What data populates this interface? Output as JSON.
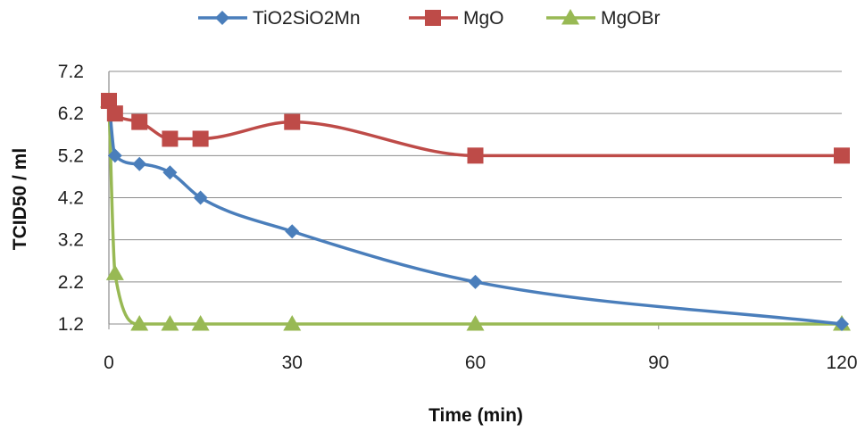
{
  "chart_data": {
    "type": "line",
    "title": "",
    "xlabel": "Time (min)",
    "ylabel": "TCID50 / ml",
    "xlim": [
      0,
      120
    ],
    "ylim": [
      1.2,
      7.2
    ],
    "xticks": [
      "0",
      "30",
      "60",
      "90",
      "120"
    ],
    "yticks": [
      "1.2",
      "2.2",
      "3.2",
      "4.2",
      "5.2",
      "6.2",
      "7.2"
    ],
    "grid": "horizontal",
    "legend_position": "top",
    "smooth": true,
    "series": [
      {
        "name": "TiO2SiO2Mn",
        "color": "#4a7ebb",
        "marker": "diamond",
        "x": [
          0,
          1,
          5,
          10,
          15,
          30,
          60,
          120
        ],
        "y": [
          6.5,
          5.2,
          5.0,
          4.8,
          4.2,
          3.4,
          2.2,
          1.2
        ]
      },
      {
        "name": "MgO",
        "color": "#be4b48",
        "marker": "square",
        "x": [
          0,
          1,
          5,
          10,
          15,
          30,
          60,
          120
        ],
        "y": [
          6.5,
          6.2,
          6.0,
          5.6,
          5.6,
          6.0,
          5.2,
          5.2
        ]
      },
      {
        "name": "MgOBr",
        "color": "#98b954",
        "marker": "triangle",
        "x": [
          0,
          1,
          5,
          10,
          15,
          30,
          60,
          120
        ],
        "y": [
          6.5,
          2.4,
          1.2,
          1.2,
          1.2,
          1.2,
          1.2,
          1.2
        ]
      }
    ]
  }
}
